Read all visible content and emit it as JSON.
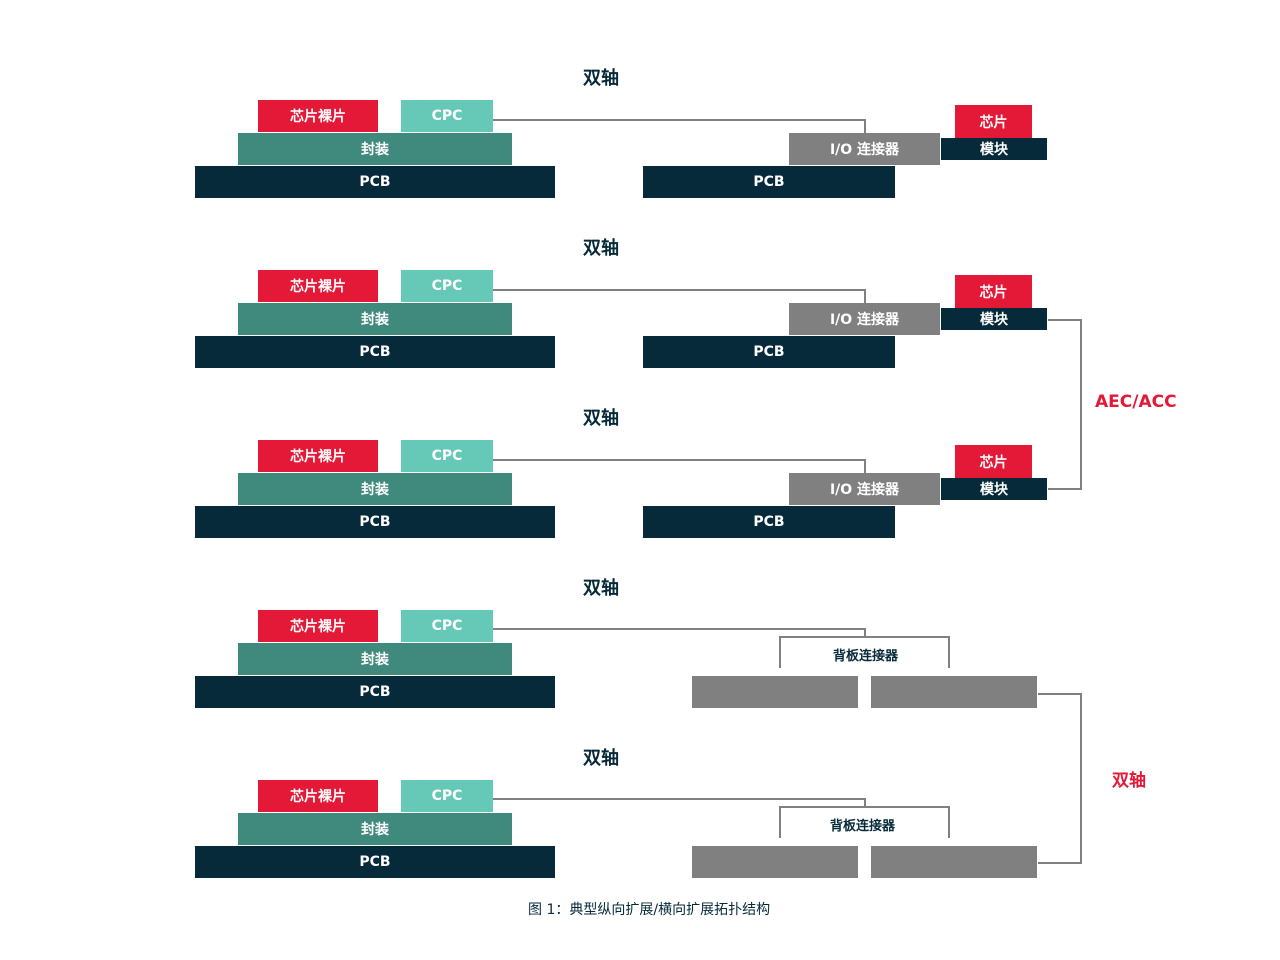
{
  "rows": [
    {
      "title": "双轴",
      "die": "芯片裸片",
      "cpc": "CPC",
      "package": "封装",
      "pcb": "PCB",
      "right_type": "io",
      "io_connector": "I/O 连接器",
      "right_pcb": "PCB",
      "module_chip": "芯片",
      "module": "模块"
    },
    {
      "title": "双轴",
      "die": "芯片裸片",
      "cpc": "CPC",
      "package": "封装",
      "pcb": "PCB",
      "right_type": "io",
      "io_connector": "I/O 连接器",
      "right_pcb": "PCB",
      "module_chip": "芯片",
      "module": "模块"
    },
    {
      "title": "双轴",
      "die": "芯片裸片",
      "cpc": "CPC",
      "package": "封装",
      "pcb": "PCB",
      "right_type": "io",
      "io_connector": "I/O 连接器",
      "right_pcb": "PCB",
      "module_chip": "芯片",
      "module": "模块"
    },
    {
      "title": "双轴",
      "die": "芯片裸片",
      "cpc": "CPC",
      "package": "封装",
      "pcb": "PCB",
      "right_type": "backplane",
      "backplane_connector": "背板连接器"
    },
    {
      "title": "双轴",
      "die": "芯片裸片",
      "cpc": "CPC",
      "package": "封装",
      "pcb": "PCB",
      "right_type": "backplane",
      "backplane_connector": "背板连接器"
    }
  ],
  "links": {
    "aec_acc": "AEC/ACC",
    "twinax": "双轴"
  },
  "caption": "图 1：典型纵向扩展/横向扩展拓扑结构",
  "colors": {
    "red": "#e31937",
    "cpc": "#66c9b8",
    "package": "#3f8a7d",
    "pcb": "#062a3a",
    "gray": "#808080",
    "line": "#808080"
  }
}
